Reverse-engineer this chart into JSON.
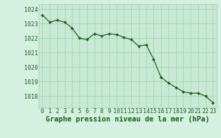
{
  "x": [
    0,
    1,
    2,
    3,
    4,
    5,
    6,
    7,
    8,
    9,
    10,
    11,
    12,
    13,
    14,
    15,
    16,
    17,
    18,
    19,
    20,
    21,
    22,
    23
  ],
  "y": [
    1023.6,
    1023.1,
    1023.25,
    1023.1,
    1022.7,
    1022.0,
    1021.9,
    1022.3,
    1022.15,
    1022.3,
    1022.25,
    1022.05,
    1021.9,
    1021.45,
    1021.55,
    1020.55,
    1019.3,
    1018.9,
    1018.6,
    1018.3,
    1018.2,
    1018.2,
    1018.0,
    1017.55
  ],
  "line_color": "#1e5c1e",
  "marker_color": "#1e5c1e",
  "bg_color": "#d4f0e0",
  "plot_bg_color": "#c8ead4",
  "grid_color": "#a0c8b0",
  "text_color": "#1e5c1e",
  "ylabel_ticks": [
    1018,
    1019,
    1020,
    1021,
    1022,
    1023,
    1024
  ],
  "xtick_labels": [
    "0",
    "1",
    "2",
    "3",
    "4",
    "5",
    "6",
    "7",
    "8",
    "9",
    "10",
    "11",
    "12",
    "13",
    "14",
    "15",
    "16",
    "17",
    "18",
    "19",
    "20",
    "21",
    "22",
    "23"
  ],
  "ylim": [
    1017.2,
    1024.35
  ],
  "xlim": [
    -0.5,
    23.5
  ],
  "title": "Graphe pression niveau de la mer (hPa)",
  "title_fontsize": 7.5,
  "tick_fontsize": 6.0
}
